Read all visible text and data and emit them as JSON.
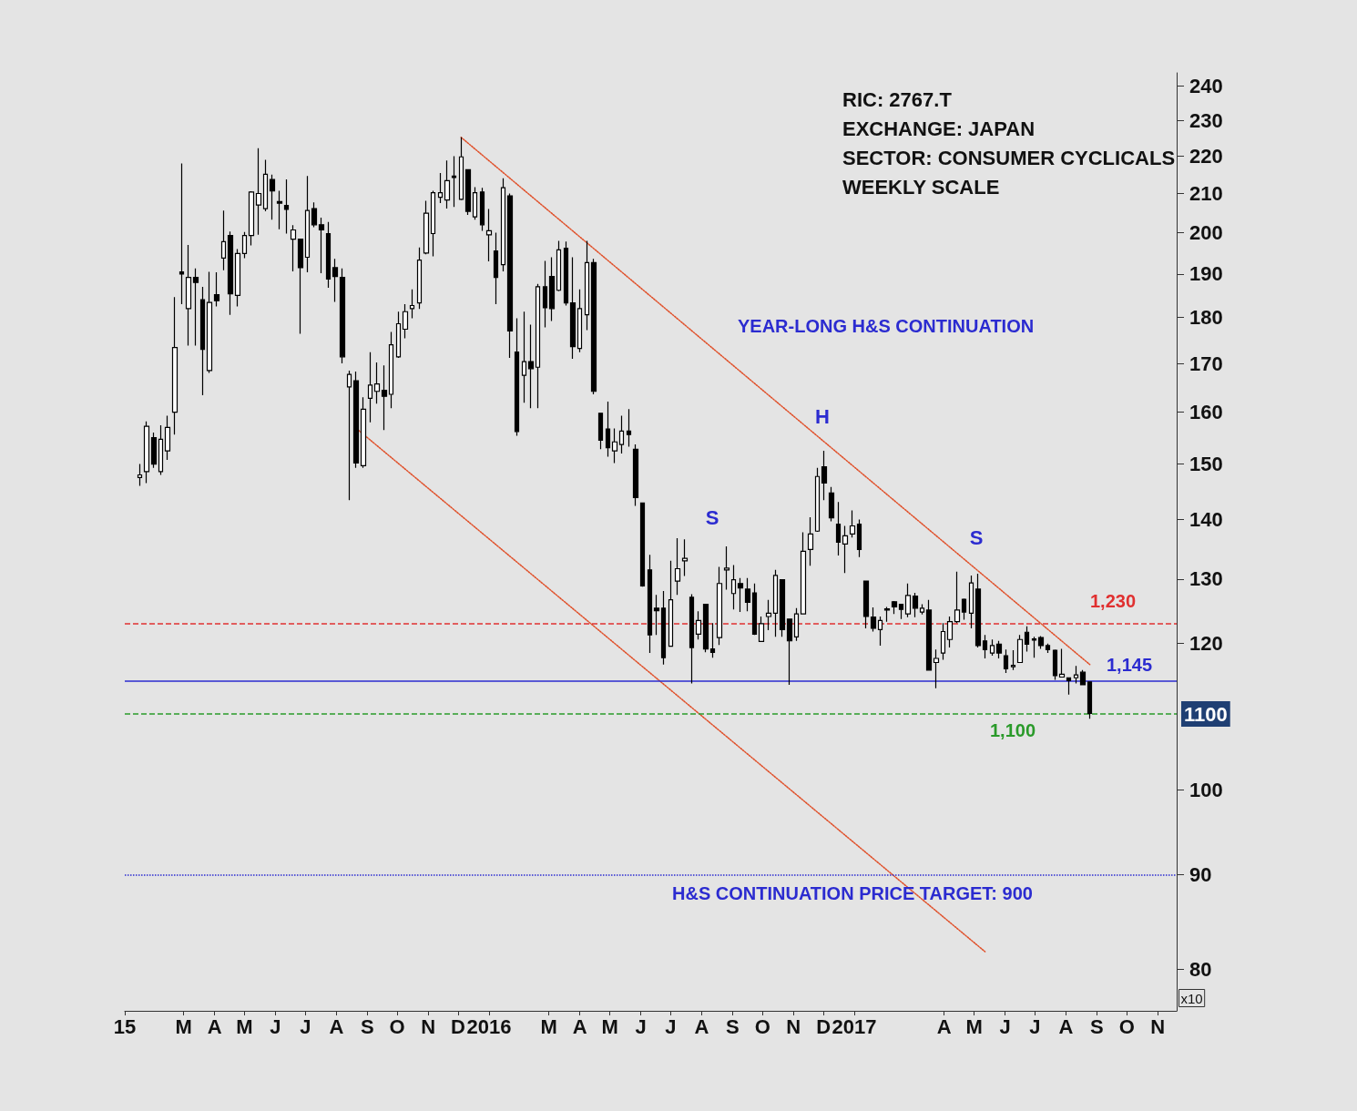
{
  "chart_data": {
    "type": "candlestick",
    "color": "#000000",
    "x": [
      "2015-01-16",
      "2015-01-23",
      "2015-01-30",
      "2015-02-06",
      "2015-02-13",
      "2015-02-20",
      "2015-02-27",
      "2015-03-06",
      "2015-03-13",
      "2015-03-20",
      "2015-03-27",
      "2015-04-03",
      "2015-04-10",
      "2015-04-17",
      "2015-04-24",
      "2015-05-01",
      "2015-05-08",
      "2015-05-15",
      "2015-05-22",
      "2015-05-29",
      "2015-06-05",
      "2015-06-12",
      "2015-06-19",
      "2015-06-26",
      "2015-07-03",
      "2015-07-10",
      "2015-07-17",
      "2015-07-24",
      "2015-07-31",
      "2015-08-07",
      "2015-08-14",
      "2015-08-21",
      "2015-08-28",
      "2015-09-04",
      "2015-09-11",
      "2015-09-18",
      "2015-09-25",
      "2015-10-02",
      "2015-10-09",
      "2015-10-16",
      "2015-10-23",
      "2015-10-30",
      "2015-11-06",
      "2015-11-13",
      "2015-11-20",
      "2015-11-27",
      "2015-12-04",
      "2015-12-11",
      "2015-12-18",
      "2015-12-25",
      "2016-01-01",
      "2016-01-08",
      "2016-01-15",
      "2016-01-22",
      "2016-01-29",
      "2016-02-05",
      "2016-02-12",
      "2016-02-19",
      "2016-02-26",
      "2016-03-04",
      "2016-03-11",
      "2016-03-18",
      "2016-03-25",
      "2016-04-01",
      "2016-04-08",
      "2016-04-15",
      "2016-04-22",
      "2016-04-29",
      "2016-05-06",
      "2016-05-13",
      "2016-05-20",
      "2016-05-27",
      "2016-06-03",
      "2016-06-10",
      "2016-06-17",
      "2016-06-24",
      "2016-07-01",
      "2016-07-08",
      "2016-07-15",
      "2016-07-22",
      "2016-07-29",
      "2016-08-05",
      "2016-08-12",
      "2016-08-19",
      "2016-08-26",
      "2016-09-02",
      "2016-09-09",
      "2016-09-16",
      "2016-09-23",
      "2016-09-30",
      "2016-10-07",
      "2016-10-14",
      "2016-10-21",
      "2016-10-28",
      "2016-11-04",
      "2016-11-11",
      "2016-11-18",
      "2016-11-25",
      "2016-12-02",
      "2016-12-09",
      "2016-12-16",
      "2016-12-23",
      "2016-12-30",
      "2017-01-06",
      "2017-01-13",
      "2017-01-20",
      "2017-01-27",
      "2017-02-03",
      "2017-02-10",
      "2017-02-17",
      "2017-02-24",
      "2017-03-03",
      "2017-03-10",
      "2017-03-17",
      "2017-03-24",
      "2017-03-31",
      "2017-04-07",
      "2017-04-14",
      "2017-04-21",
      "2017-04-28",
      "2017-05-05",
      "2017-05-12",
      "2017-05-19",
      "2017-05-26",
      "2017-06-02",
      "2017-06-09",
      "2017-06-16",
      "2017-06-23",
      "2017-06-30",
      "2017-07-07",
      "2017-07-14",
      "2017-07-21",
      "2017-07-28",
      "2017-08-04",
      "2017-08-11",
      "2017-08-18",
      "2017-08-25"
    ],
    "ohlc": [
      [
        147.5,
        150,
        146,
        148
      ],
      [
        148.6,
        158.2,
        146.5,
        157.2
      ],
      [
        155,
        156,
        149.3,
        150
      ],
      [
        148.6,
        157.4,
        148,
        154.7
      ],
      [
        152.5,
        159.3,
        150.8,
        157
      ],
      [
        160,
        184.6,
        155.6,
        173.4
      ],
      [
        190.5,
        218,
        183,
        190
      ],
      [
        182,
        197,
        173.8,
        189.2
      ],
      [
        189.2,
        191.3,
        173.8,
        188
      ],
      [
        184,
        187,
        163.4,
        173
      ],
      [
        168.5,
        190.5,
        168,
        183.4
      ],
      [
        185.2,
        190.4,
        182.5,
        183.8
      ],
      [
        193.8,
        205.6,
        190.9,
        197.8
      ],
      [
        199.3,
        200.3,
        180.6,
        185.4
      ],
      [
        185,
        196,
        182.5,
        194.9
      ],
      [
        194.9,
        200.2,
        193.8,
        199.3
      ],
      [
        199.3,
        210.6,
        196.9,
        210.4
      ],
      [
        207,
        222.2,
        199.5,
        210
      ],
      [
        206.1,
        219,
        205.4,
        215.1
      ],
      [
        213.7,
        215,
        203.3,
        210.7
      ],
      [
        207.9,
        210.7,
        200.9,
        207.5
      ],
      [
        206.9,
        213.7,
        199.8,
        205.9
      ],
      [
        198.4,
        201.9,
        190.6,
        200.7
      ],
      [
        198.4,
        198.4,
        176.4,
        191.5
      ],
      [
        194,
        214.6,
        190.4,
        205.6
      ],
      [
        206.1,
        207.7,
        201.4,
        202
      ],
      [
        202,
        203.8,
        190.2,
        200.7
      ],
      [
        199.8,
        202.7,
        186.8,
        188.8
      ],
      [
        191.5,
        193.6,
        183.5,
        189.4
      ],
      [
        189.2,
        191.3,
        170,
        171.4
      ],
      [
        165.1,
        168.5,
        143.4,
        167.7
      ],
      [
        166.4,
        168.3,
        149.3,
        150.2
      ],
      [
        149.7,
        163,
        149.3,
        160.6
      ],
      [
        162.8,
        172.4,
        158,
        165.5
      ],
      [
        164.2,
        170.2,
        161.7,
        165.7
      ],
      [
        164.4,
        169.6,
        156.5,
        163.2
      ],
      [
        163.6,
        176.8,
        160.8,
        174
      ],
      [
        171.4,
        181.3,
        171.2,
        178.6
      ],
      [
        177.4,
        183,
        175.4,
        181.3
      ],
      [
        182,
        186.4,
        179.8,
        182.7
      ],
      [
        183.3,
        196.4,
        181.9,
        193.3
      ],
      [
        195,
        208.1,
        194.7,
        204.9
      ],
      [
        199.8,
        210.7,
        194.2,
        210.2
      ],
      [
        209,
        215.4,
        207.5,
        210.2
      ],
      [
        208.3,
        218.8,
        206.1,
        213.4
      ],
      [
        214.6,
        220,
        206.5,
        214.2
      ],
      [
        208.5,
        225.2,
        208.3,
        219.8
      ],
      [
        216.3,
        216.4,
        204.5,
        205.4
      ],
      [
        204,
        211.7,
        203.3,
        210.2
      ],
      [
        210.4,
        211.5,
        200.5,
        202
      ],
      [
        199.5,
        206,
        193,
        200.5
      ],
      [
        195.5,
        200,
        183,
        189.2
      ],
      [
        192.2,
        214,
        190.6,
        211.5
      ],
      [
        209.4,
        210,
        171.2,
        177
      ],
      [
        172.4,
        179.8,
        155.4,
        156.2
      ],
      [
        167.5,
        181.3,
        161.9,
        170.4
      ],
      [
        170.4,
        178.4,
        160.8,
        168.9
      ],
      [
        169.2,
        187.7,
        160.8,
        187
      ],
      [
        187,
        193.1,
        177.8,
        182.2
      ],
      [
        189.4,
        194,
        179.2,
        182
      ],
      [
        186.2,
        198,
        186,
        195.8
      ],
      [
        196.2,
        197.8,
        182.7,
        183.3
      ],
      [
        183.3,
        194,
        171,
        173.6
      ],
      [
        173.2,
        186.4,
        172.4,
        182
      ],
      [
        180.6,
        198,
        177.2,
        192.7
      ],
      [
        192.7,
        193.6,
        163.6,
        164.2
      ],
      [
        159.8,
        159.9,
        152.8,
        154.5
      ],
      [
        156.7,
        162.1,
        151.4,
        153.1
      ],
      [
        152.5,
        156.8,
        150.2,
        154.2
      ],
      [
        153.7,
        159.3,
        152,
        156.3
      ],
      [
        156.3,
        160.6,
        153.3,
        155.6
      ],
      [
        152.8,
        153.7,
        142.4,
        143.9
      ],
      [
        142.9,
        143,
        128.8,
        128.9
      ],
      [
        131.5,
        134,
        118.6,
        121.3
      ],
      [
        125.4,
        127.5,
        121.3,
        125
      ],
      [
        125.4,
        128.1,
        116.9,
        117.9
      ],
      [
        119.6,
        133,
        119.6,
        126.7
      ],
      [
        129.7,
        136.8,
        127.5,
        131.7
      ],
      [
        133,
        136.6,
        130.5,
        133.4
      ],
      [
        127.1,
        127.6,
        114.2,
        119.4
      ],
      [
        121.4,
        124.9,
        120.6,
        123.5
      ],
      [
        126,
        126.1,
        118.7,
        119.2
      ],
      [
        119.2,
        123.1,
        117.9,
        118.7
      ],
      [
        120.9,
        132,
        119.8,
        129.3
      ],
      [
        131.5,
        135.4,
        128.3,
        131.8
      ],
      [
        127.7,
        132.3,
        125.2,
        129.9
      ],
      [
        129.3,
        130.2,
        124.8,
        128.6
      ],
      [
        128.4,
        130.2,
        124.9,
        126.3
      ],
      [
        127.8,
        129.3,
        121.3,
        121.4
      ],
      [
        120.3,
        124.1,
        120.3,
        123
      ],
      [
        124.1,
        126.7,
        122,
        124.6
      ],
      [
        124.6,
        131.5,
        121,
        130.6
      ],
      [
        129.9,
        129.9,
        121,
        122.1
      ],
      [
        123.7,
        123.7,
        114,
        120.4
      ],
      [
        121,
        125.4,
        120.4,
        124.5
      ],
      [
        124.5,
        137.8,
        124.4,
        134.6
      ],
      [
        134.9,
        140.4,
        132.2,
        137.5
      ],
      [
        138,
        149.3,
        137.9,
        147.7
      ],
      [
        149.5,
        152.5,
        143.4,
        146.5
      ],
      [
        144.7,
        145.8,
        139.7,
        140.3
      ],
      [
        139.2,
        143.1,
        133.9,
        136.1
      ],
      [
        135.8,
        138.9,
        131,
        137.2
      ],
      [
        137.5,
        141.6,
        136.9,
        138.9
      ],
      [
        139.2,
        140,
        133.6,
        134.9
      ],
      [
        129.7,
        129.7,
        122.3,
        124.1
      ],
      [
        124,
        125.5,
        121.8,
        122.3
      ],
      [
        122.1,
        124.1,
        119.7,
        123.5
      ],
      [
        125.3,
        125.6,
        123.3,
        125.1
      ],
      [
        126.4,
        126.5,
        124.5,
        125.6
      ],
      [
        126,
        126.1,
        123.7,
        125.2
      ],
      [
        124.5,
        129.3,
        124,
        127.4
      ],
      [
        127.3,
        127.8,
        124,
        125.4
      ],
      [
        124.8,
        126,
        124.4,
        125.4
      ],
      [
        125.1,
        126.7,
        116,
        116.1
      ],
      [
        117.2,
        119.1,
        113.5,
        117.8
      ],
      [
        118.6,
        123.1,
        117.6,
        121.8
      ],
      [
        120.6,
        124.1,
        119.4,
        123.3
      ],
      [
        123.3,
        131.2,
        123.1,
        125.1
      ],
      [
        126.8,
        126.9,
        123.6,
        124.8
      ],
      [
        124.6,
        130.6,
        122.3,
        129.4
      ],
      [
        128.4,
        130.9,
        119.4,
        119.7
      ],
      [
        120.4,
        121.3,
        117.8,
        119.1
      ],
      [
        118.6,
        120.6,
        118.2,
        119.7
      ],
      [
        119.9,
        120.4,
        117.8,
        118.6
      ],
      [
        118.2,
        119.1,
        115.7,
        116.3
      ],
      [
        116.6,
        119,
        116.1,
        116.8
      ],
      [
        117.2,
        121.3,
        117.2,
        120.6
      ],
      [
        121.7,
        122.6,
        118.8,
        119.9
      ],
      [
        120.7,
        121,
        117.9,
        120.5
      ],
      [
        120.9,
        121.1,
        119.2,
        119.7
      ],
      [
        119.7,
        120,
        118.6,
        119.1
      ],
      [
        119,
        119.1,
        114.7,
        115.3
      ],
      [
        115.1,
        119.2,
        115.1,
        115.5
      ],
      [
        115,
        115,
        112.6,
        114.6
      ],
      [
        115,
        116.7,
        114.2,
        115.4
      ],
      [
        115.8,
        116.1,
        114,
        114
      ],
      [
        114.4,
        114.4,
        109.3,
        110
      ]
    ],
    "series": [
      {
        "type": "line",
        "x": [
          "2015-12-04",
          "2017-08-25"
        ],
        "values": [
          225.2,
          116.9
        ],
        "color": "#e0502a",
        "line_style": "dotted"
      },
      {
        "type": "line",
        "x": [
          "2015-08-21",
          "2017-05-12"
        ],
        "values": [
          156.8,
          81.8
        ],
        "color": "#e0502a",
        "line_style": "dotted"
      }
    ],
    "xlim": [
      "2015-01-01",
      "2017-11-20"
    ],
    "xticks": [
      {
        "value": "2015-01-01",
        "label": "15"
      },
      {
        "value": "2015-03-01",
        "label": "M"
      },
      {
        "value": "2015-04-01",
        "label": "A"
      },
      {
        "value": "2015-05-01",
        "label": "M"
      },
      {
        "value": "2015-06-01",
        "label": "J"
      },
      {
        "value": "2015-07-01",
        "label": "J"
      },
      {
        "value": "2015-08-01",
        "label": "A"
      },
      {
        "value": "2015-09-01",
        "label": "S"
      },
      {
        "value": "2015-10-01",
        "label": "O"
      },
      {
        "value": "2015-11-01",
        "label": "N"
      },
      {
        "value": "2015-12-01",
        "label": "D"
      },
      {
        "value": "2016-01-01",
        "label": "2016"
      },
      {
        "value": "2016-03-01",
        "label": "M"
      },
      {
        "value": "2016-04-01",
        "label": "A"
      },
      {
        "value": "2016-05-01",
        "label": "M"
      },
      {
        "value": "2016-06-01",
        "label": "J"
      },
      {
        "value": "2016-07-01",
        "label": "J"
      },
      {
        "value": "2016-08-01",
        "label": "A"
      },
      {
        "value": "2016-09-01",
        "label": "S"
      },
      {
        "value": "2016-10-01",
        "label": "O"
      },
      {
        "value": "2016-11-01",
        "label": "N"
      },
      {
        "value": "2016-12-01",
        "label": "D"
      },
      {
        "value": "2017-01-01",
        "label": "2017"
      },
      {
        "value": "2017-04-01",
        "label": "A"
      },
      {
        "value": "2017-05-01",
        "label": "M"
      },
      {
        "value": "2017-06-01",
        "label": "J"
      },
      {
        "value": "2017-07-01",
        "label": "J"
      },
      {
        "value": "2017-08-01",
        "label": "A"
      },
      {
        "value": "2017-09-01",
        "label": "S"
      },
      {
        "value": "2017-10-01",
        "label": "O"
      },
      {
        "value": "2017-11-01",
        "label": "N"
      }
    ],
    "ylim": [
      76,
      244
    ],
    "yticks": [
      80,
      90,
      100,
      120,
      130,
      140,
      150,
      160,
      170,
      180,
      190,
      200,
      210,
      220,
      230,
      240
    ],
    "log": "y",
    "grid": false,
    "ref_lines": [
      {
        "axis": "y",
        "value": 123,
        "color": "#e03030",
        "line_style": "dashed"
      },
      {
        "axis": "y",
        "value": 114.5,
        "color": "#2b2bd0",
        "line_style": "solid"
      },
      {
        "axis": "y",
        "value": 110,
        "color": "#2a9a2a",
        "line_style": "dashed"
      },
      {
        "axis": "y",
        "value": 90,
        "color": "#2b2bd0",
        "line_style": "dotted"
      }
    ],
    "annotations": [
      "RIC: 2767.T",
      "EXCHANGE: JAPAN",
      "SECTOR: CONSUMER CYCLICALS",
      "WEEKLY SCALE",
      "YEAR-LONG H&S CONTINUATION",
      "S",
      "H",
      "S",
      "1100",
      "x10",
      "1,230",
      "1,145",
      "1,100",
      "H&S CONTINUATION PRICE TARGET: 900"
    ]
  }
}
